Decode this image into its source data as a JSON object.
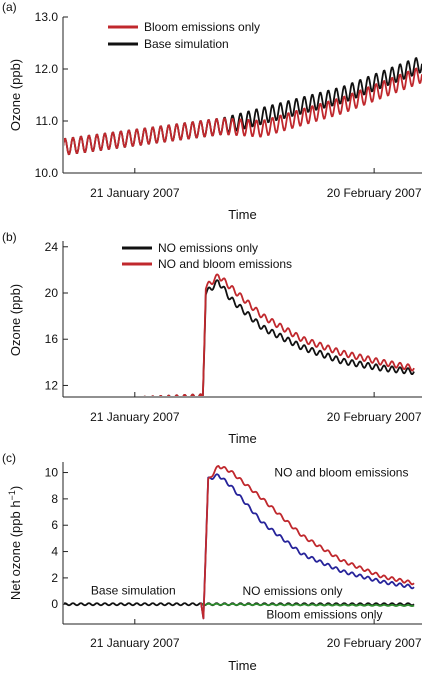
{
  "chart_data": [
    {
      "panel_label": "(a)",
      "type": "line",
      "xlabel": "Time",
      "ylabel": "Ozone (ppb)",
      "x_range_days": [
        0,
        45
      ],
      "ylim": [
        10,
        13
      ],
      "yticks": [
        10.0,
        11.0,
        12.0,
        13.0
      ],
      "ytick_labels": [
        "10.0",
        "11.0",
        "12.0",
        "13.0"
      ],
      "xtick_labels": [
        {
          "label": "21 January 2007",
          "day": 9
        },
        {
          "label": "20 February 2007",
          "day": 39
        }
      ],
      "legend": [
        {
          "label": "Bloom emissions only",
          "color": "#c0282d"
        },
        {
          "label": "Base simulation",
          "color": "#111111"
        }
      ],
      "series": [
        {
          "name": "Base simulation",
          "color": "#111111",
          "keypoints": [
            [
              0,
              10.5
            ],
            [
              20,
              10.9
            ],
            [
              35,
              11.5
            ],
            [
              45,
              12.1
            ]
          ],
          "oscillation_amplitude": 0.16
        },
        {
          "name": "Bloom emissions only",
          "color": "#c0282d",
          "keypoints": [
            [
              0,
              10.5
            ],
            [
              20,
              10.9
            ],
            [
              25,
              10.85
            ],
            [
              35,
              11.3
            ],
            [
              45,
              11.9
            ]
          ],
          "oscillation_amplitude": 0.16
        }
      ]
    },
    {
      "panel_label": "(b)",
      "type": "line",
      "xlabel": "Time",
      "ylabel": "Ozone (ppb)",
      "x_range_days": [
        0,
        45
      ],
      "ylim": [
        11,
        24.5
      ],
      "yticks": [
        12,
        16,
        20,
        24
      ],
      "ytick_labels": [
        "12",
        "16",
        "20",
        "24"
      ],
      "xtick_labels": [
        {
          "label": "21 January 2007",
          "day": 9
        },
        {
          "label": "20 February 2007",
          "day": 39
        }
      ],
      "legend": [
        {
          "label": "NO emissions only",
          "color": "#111111"
        },
        {
          "label": "NO and bloom emissions",
          "color": "#c0282d"
        }
      ],
      "series": [
        {
          "name": "NO emissions only",
          "color": "#111111",
          "keypoints": [
            [
              0,
              10.5
            ],
            [
              17.3,
              11.0
            ],
            [
              17.5,
              10.3
            ],
            [
              17.9,
              20.0
            ],
            [
              19.5,
              21.0
            ],
            [
              21,
              19.5
            ],
            [
              25,
              17.0
            ],
            [
              30,
              15.3
            ],
            [
              35,
              14.1
            ],
            [
              40,
              13.5
            ],
            [
              44,
              13.2
            ]
          ],
          "oscillation_amplitude": 0.25
        },
        {
          "name": "NO and bloom emissions",
          "color": "#c0282d",
          "keypoints": [
            [
              0,
              10.5
            ],
            [
              17.3,
              11.0
            ],
            [
              17.5,
              10.3
            ],
            [
              17.9,
              20.5
            ],
            [
              19.5,
              21.5
            ],
            [
              21,
              20.5
            ],
            [
              25,
              18.0
            ],
            [
              30,
              16.0
            ],
            [
              35,
              14.8
            ],
            [
              40,
              14.0
            ],
            [
              44,
              13.5
            ]
          ],
          "oscillation_amplitude": 0.25
        }
      ]
    },
    {
      "panel_label": "(c)",
      "type": "line",
      "xlabel": "Time",
      "ylabel": "Net ozone (ppb h",
      "ylabel_superscript": "−1",
      "ylabel_close": ")",
      "x_range_days": [
        0,
        45
      ],
      "ylim": [
        -1.5,
        10.8
      ],
      "yticks": [
        0,
        2,
        4,
        6,
        8,
        10
      ],
      "ytick_labels": [
        "0",
        "2",
        "4",
        "6",
        "8",
        "10"
      ],
      "xtick_labels": [
        {
          "label": "21 January 2007",
          "day": 9
        },
        {
          "label": "20 February 2007",
          "day": 39
        }
      ],
      "annotations": [
        {
          "text": "NO and bloom emissions",
          "color": "#c0282d",
          "day": 26.5,
          "value": 9.7
        },
        {
          "text": "NO emissions only",
          "color": "#26239a",
          "day": 22.5,
          "value": 0.7
        },
        {
          "text": "Base simulation",
          "color": "#111111",
          "day": 3.5,
          "value": 0.75
        },
        {
          "text": "Bloom emissions only",
          "color": "#2e8b2e",
          "day": 25.5,
          "value": -1.1
        }
      ],
      "series": [
        {
          "name": "Base simulation",
          "color": "#111111",
          "keypoints": [
            [
              0,
              0
            ],
            [
              44,
              0
            ]
          ],
          "oscillation_amplitude": 0.08
        },
        {
          "name": "Bloom emissions only",
          "color": "#2e8b2e",
          "keypoints": [
            [
              17.3,
              0
            ],
            [
              44,
              -0.1
            ]
          ],
          "oscillation_amplitude": 0.04
        },
        {
          "name": "NO emissions only",
          "color": "#26239a",
          "keypoints": [
            [
              17.3,
              0
            ],
            [
              17.6,
              -1.0
            ],
            [
              18.2,
              9.5
            ],
            [
              19.5,
              9.8
            ],
            [
              21,
              9.0
            ],
            [
              25,
              6.2
            ],
            [
              30,
              3.8
            ],
            [
              35,
              2.5
            ],
            [
              40,
              1.7
            ],
            [
              44,
              1.3
            ]
          ],
          "oscillation_amplitude": 0.12
        },
        {
          "name": "NO and bloom emissions",
          "color": "#c0282d",
          "keypoints": [
            [
              17.3,
              0
            ],
            [
              17.6,
              -1.0
            ],
            [
              18.2,
              9.4
            ],
            [
              19.5,
              10.5
            ],
            [
              21,
              10.1
            ],
            [
              25,
              8.0
            ],
            [
              30,
              5.2
            ],
            [
              35,
              3.3
            ],
            [
              40,
              2.1
            ],
            [
              44,
              1.6
            ]
          ],
          "oscillation_amplitude": 0.12
        }
      ]
    }
  ]
}
